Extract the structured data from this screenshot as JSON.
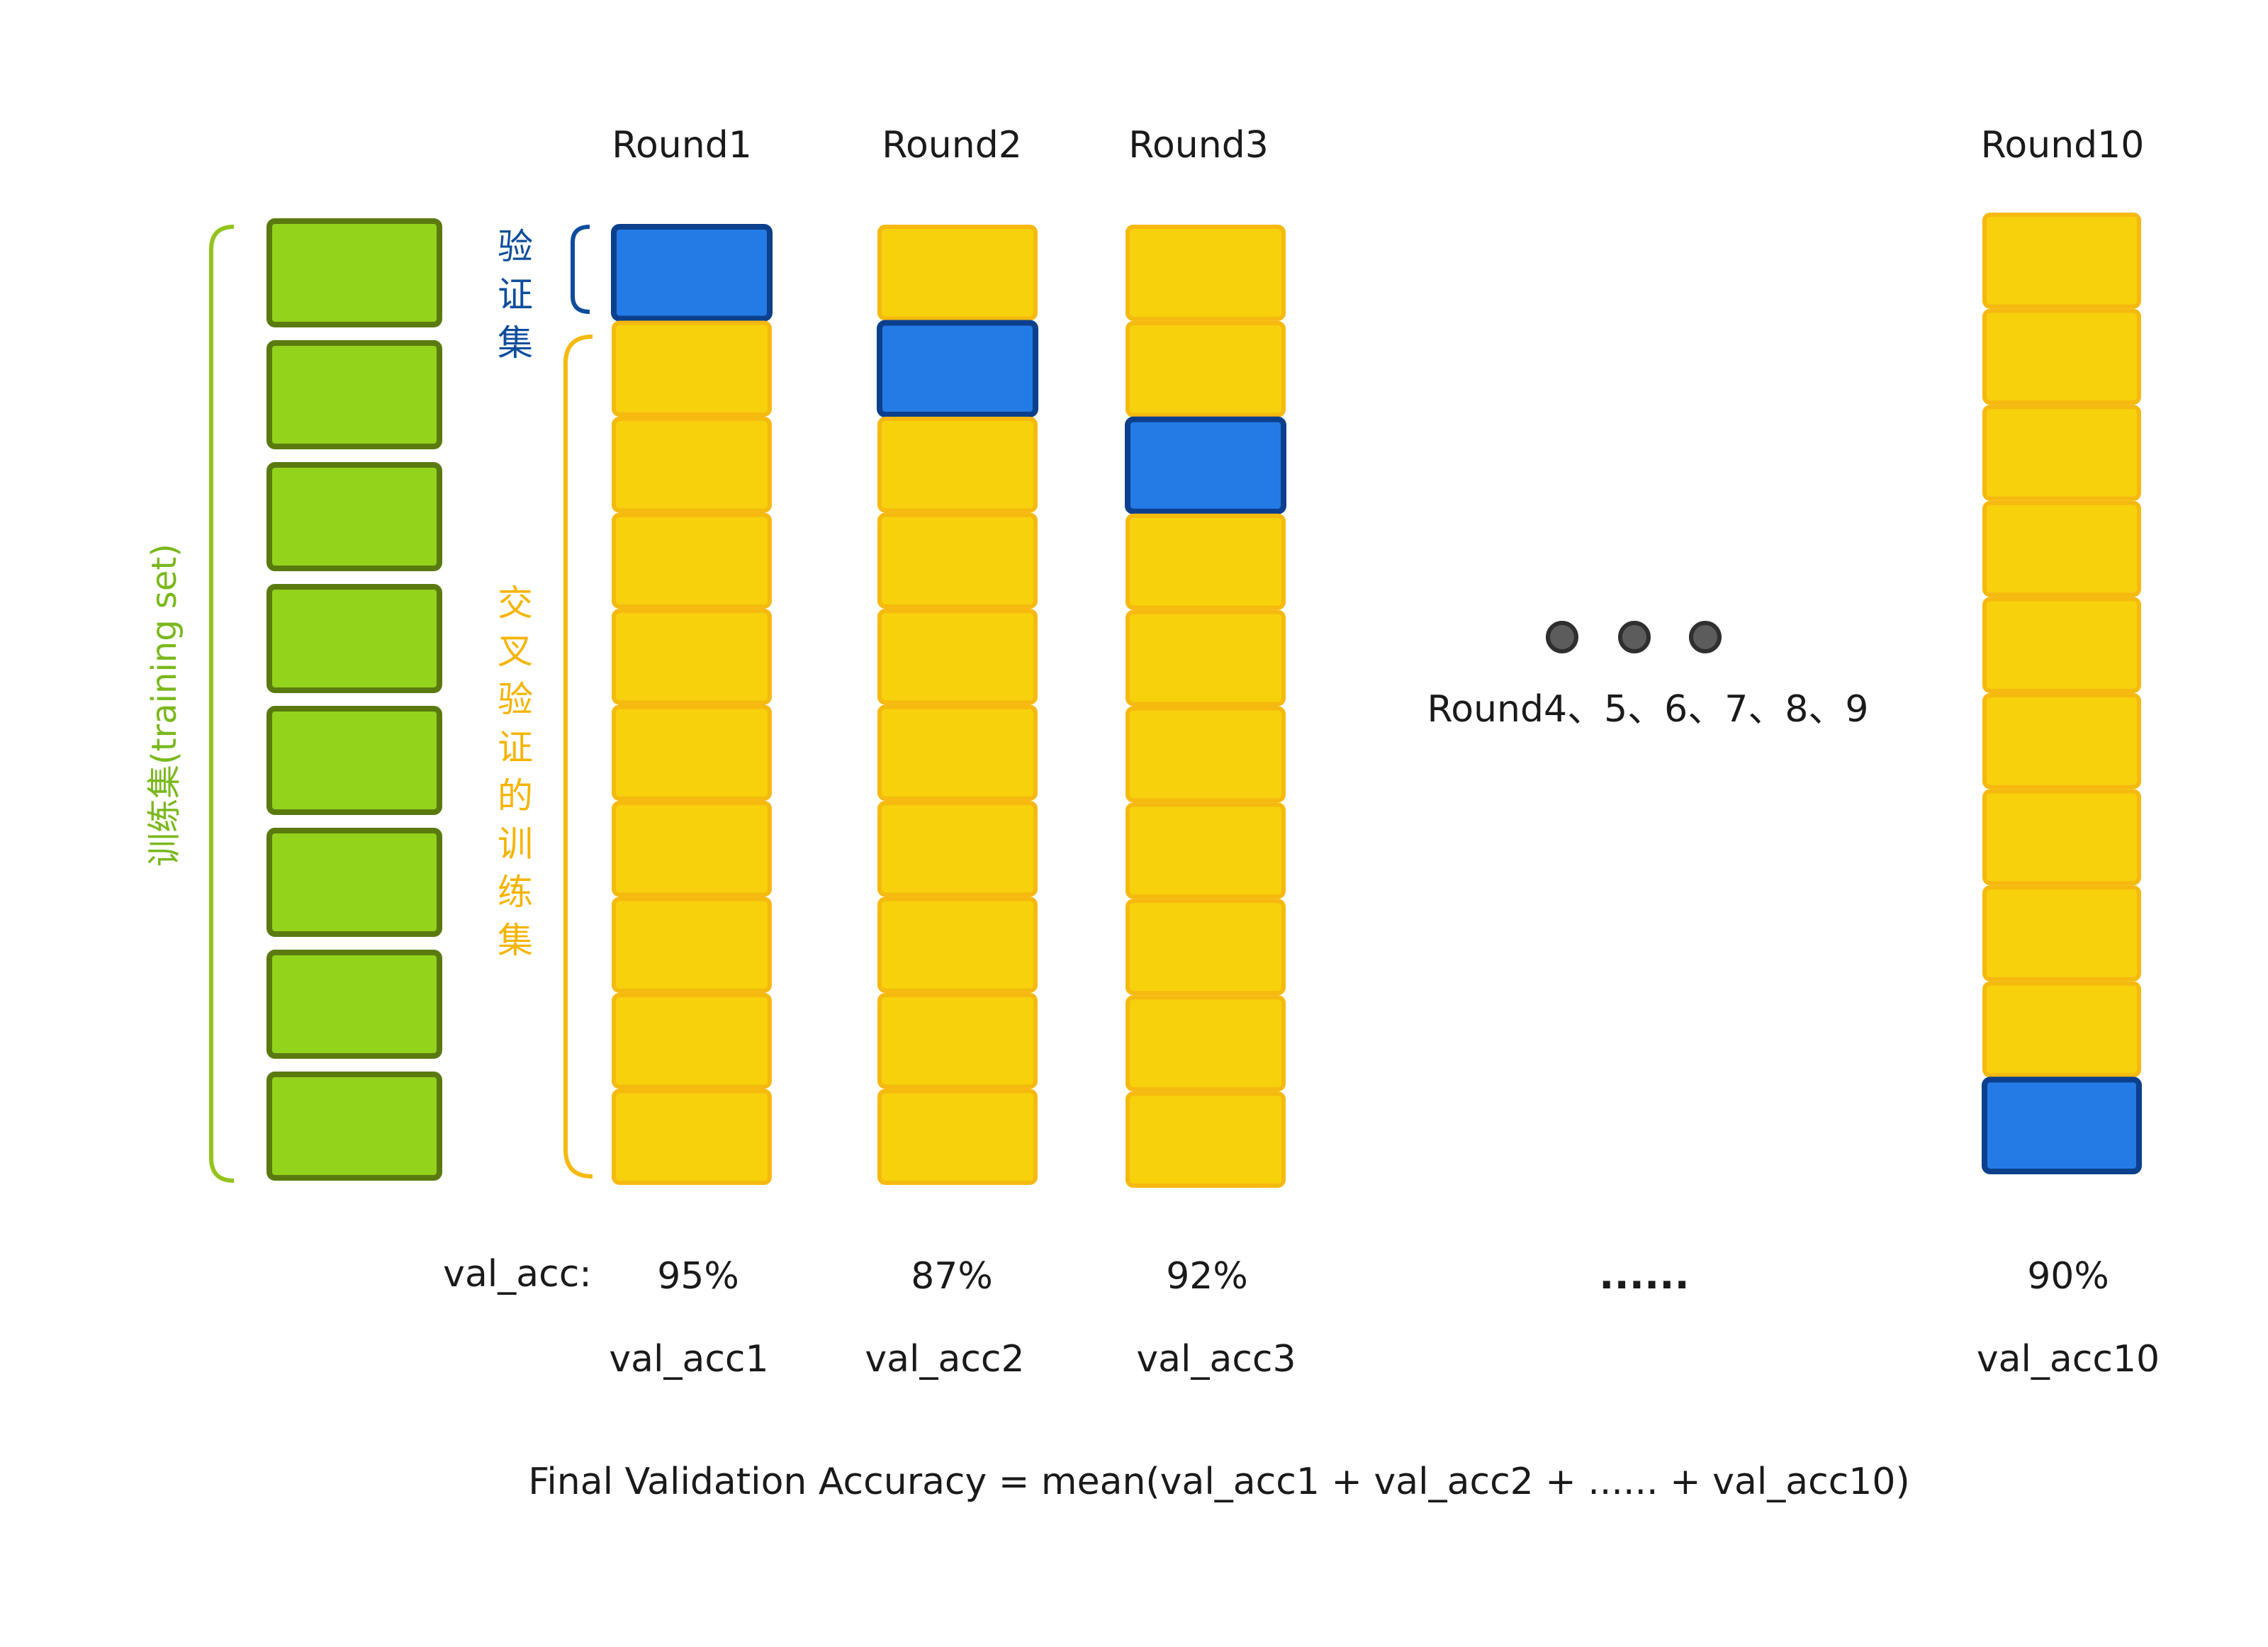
{
  "training_set_label": "训练集(training set)",
  "validation_label": [
    "验",
    "证",
    "集"
  ],
  "cv_train_label": [
    "交",
    "叉",
    "验",
    "证",
    "的",
    "训",
    "练",
    "集"
  ],
  "rounds": [
    {
      "title": "Round1",
      "val_index": 0,
      "acc": "95%",
      "acc_name": "val_acc1"
    },
    {
      "title": "Round2",
      "val_index": 1,
      "acc": "87%",
      "acc_name": "val_acc2"
    },
    {
      "title": "Round3",
      "val_index": 2,
      "acc": "92%",
      "acc_name": "val_acc3"
    },
    {
      "title": "Round10",
      "val_index": 9,
      "acc": "90%",
      "acc_name": "val_acc10"
    }
  ],
  "middle_rounds_label": "Round4、5、6、7、8、9",
  "middle_ellipsis": "......",
  "val_acc_label": "val_acc:",
  "formula": "Final Validation Accuracy = mean(val_acc1 + val_acc2 + ...... + val_acc10)",
  "colors": {
    "green_fill": "#93d31c",
    "green_stroke": "#5a7a10",
    "green_text": "#7ab81c",
    "yellow_fill": "#f7d10c",
    "yellow_stroke": "#f5b90f",
    "yellow_text": "#f5b400",
    "blue_fill": "#247be6",
    "blue_stroke": "#0c3f8c",
    "blue_text": "#0f4d9c",
    "dot_fill": "#5c5c5c",
    "dot_stroke": "#2f2f2f"
  }
}
